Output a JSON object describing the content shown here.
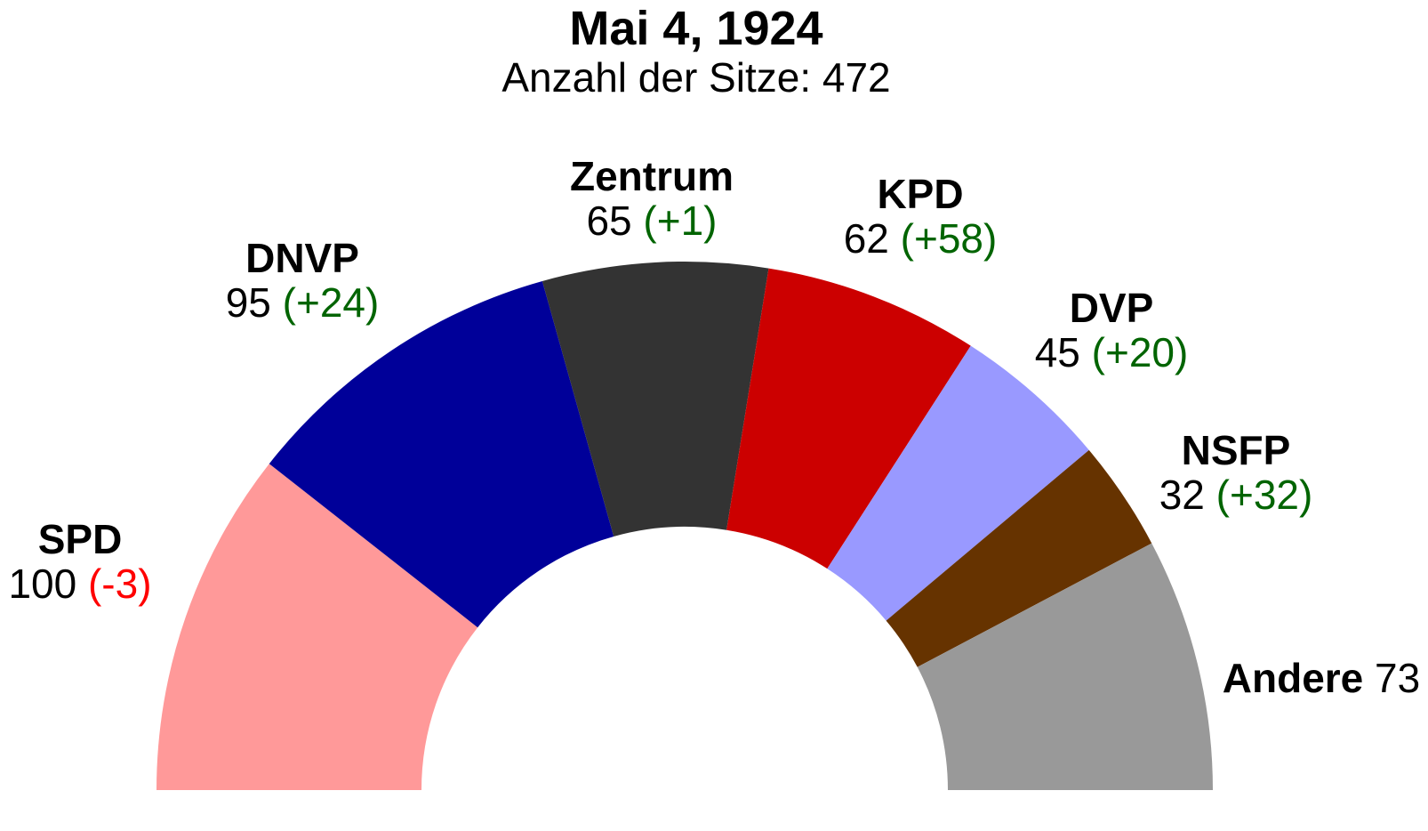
{
  "title": "Mai 4, 1924",
  "subtitle": "Anzahl der Sitze: 472",
  "colors": {
    "gain": "#006400",
    "loss": "#ff0000"
  },
  "chart_data": {
    "type": "pie",
    "variant": "parliament-semicircle",
    "total_seats": 472,
    "parties": [
      {
        "name": "SPD",
        "seats": 100,
        "change": "-3",
        "color": "#ff9999"
      },
      {
        "name": "DNVP",
        "seats": 95,
        "change": "+24",
        "color": "#000099"
      },
      {
        "name": "Zentrum",
        "seats": 65,
        "change": "+1",
        "color": "#333333"
      },
      {
        "name": "KPD",
        "seats": 62,
        "change": "+58",
        "color": "#cc0000"
      },
      {
        "name": "DVP",
        "seats": 45,
        "change": "+20",
        "color": "#9999ff"
      },
      {
        "name": "NSFP",
        "seats": 32,
        "change": "+32",
        "color": "#663300"
      },
      {
        "name": "Andere",
        "seats": 73,
        "change": "",
        "color": "#999999"
      }
    ]
  }
}
